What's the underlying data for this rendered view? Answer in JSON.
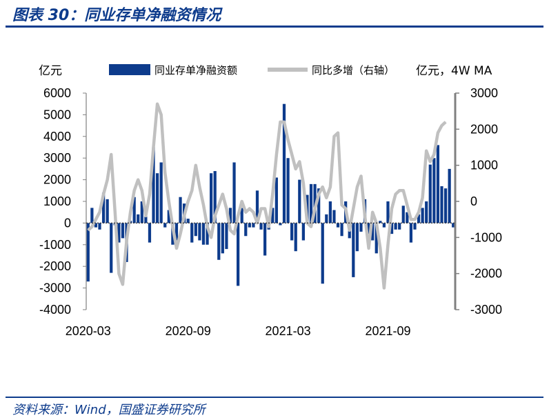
{
  "title": "图表 30：同业存单净融资情况",
  "source": "资料来源：Wind，国盛证券研究所",
  "colors": {
    "bar": "#0d3b8c",
    "line": "#c0c0c0",
    "axis": "#808080"
  },
  "chart_data": {
    "type": "bar",
    "ylabel_left": "亿元",
    "ylabel_right": "亿元，4W MA",
    "ylim_left": [
      -4000,
      6000
    ],
    "ylim_right": [
      -3000,
      3000
    ],
    "yticks_left": [
      "6000",
      "5000",
      "4000",
      "3000",
      "2000",
      "1000",
      "0",
      "-1000",
      "-2000",
      "-3000",
      "-4000"
    ],
    "yticks_right": [
      "3000",
      "2000",
      "1000",
      "0",
      "-1000",
      "-2000",
      "-3000"
    ],
    "xtick_labels": [
      "2020-03",
      "2020-09",
      "2021-03",
      "2021-09"
    ],
    "xtick_index": [
      0,
      26,
      52,
      78
    ],
    "legend_top": true,
    "series": [
      {
        "name": "同业存单净融资额",
        "type": "bar",
        "axis": "left",
        "values": [
          -2700,
          700,
          -200,
          -300,
          1400,
          1100,
          -2300,
          -100,
          -900,
          -700,
          -1800,
          100,
          1200,
          400,
          1000,
          300,
          -900,
          3500,
          2300,
          2800,
          -200,
          600,
          -1000,
          -800,
          1200,
          900,
          200,
          -900,
          -600,
          -800,
          -1000,
          -1000,
          2300,
          2400,
          -1700,
          -1400,
          -1200,
          700,
          2800,
          -2900,
          700,
          -600,
          -200,
          -200,
          1500,
          -300,
          -1500,
          -300,
          700,
          2100,
          -100,
          5500,
          3000,
          -800,
          -1300,
          2000,
          -800,
          1300,
          1800,
          1800,
          1600,
          -2800,
          400,
          1000,
          600,
          -200,
          -600,
          1000,
          -700,
          -2500,
          -1300,
          -400,
          1100,
          -500,
          -800,
          -1400,
          100,
          -200,
          1000,
          -500,
          -300,
          -300,
          800,
          500,
          -900,
          -300,
          400,
          700,
          1000,
          2700,
          3000,
          3600,
          1700,
          1600,
          2500,
          -200
        ]
      },
      {
        "name": "同比多增（右轴）",
        "type": "line",
        "axis": "right",
        "values": [
          -800,
          -700,
          -500,
          -300,
          200,
          600,
          1300,
          -300,
          -2000,
          -2300,
          -1100,
          -300,
          300,
          600,
          300,
          -400,
          200,
          1500,
          2700,
          2400,
          800,
          0,
          -700,
          -1300,
          -900,
          -400,
          0,
          300,
          1000,
          400,
          -100,
          -700,
          -1000,
          -400,
          -100,
          200,
          -200,
          -800,
          -900,
          -400,
          0,
          -300,
          -200,
          -300,
          -600,
          -200,
          -200,
          -700,
          200,
          1300,
          2200,
          2200,
          1700,
          1300,
          900,
          1100,
          500,
          -600,
          -700,
          -200,
          200,
          400,
          100,
          400,
          1800,
          1900,
          -100,
          -200,
          -800,
          -200,
          400,
          700,
          -400,
          -1300,
          -300,
          -600,
          -1300,
          -2400,
          -1200,
          -200,
          200,
          300,
          300,
          -100,
          -500,
          -500,
          -300,
          100,
          1400,
          1100,
          1300,
          1900,
          2100,
          2200
        ]
      }
    ]
  }
}
